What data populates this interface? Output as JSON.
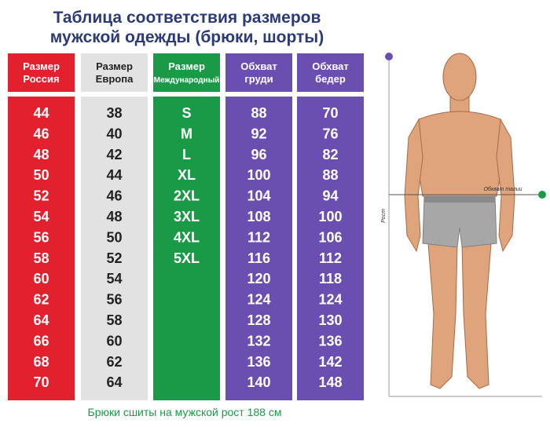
{
  "title": [
    "Таблица соответствия размеров",
    "мужской одежды (брюки, шорты)"
  ],
  "columns": [
    {
      "header": [
        "Размер",
        "Россия"
      ],
      "values": [
        44,
        46,
        48,
        50,
        52,
        54,
        56,
        58,
        60,
        62,
        64,
        66,
        68,
        70
      ]
    },
    {
      "header": [
        "Размер",
        "Европа"
      ],
      "values": [
        38,
        40,
        42,
        44,
        46,
        48,
        50,
        52,
        54,
        56,
        58,
        60,
        62,
        64
      ]
    },
    {
      "header": [
        "Размер",
        "Международный"
      ],
      "values": [
        "S",
        "M",
        "L",
        "XL",
        "2XL",
        "3XL",
        "4XL",
        "5XL"
      ]
    },
    {
      "header": [
        "Обхват",
        "груди"
      ],
      "values": [
        88,
        92,
        96,
        100,
        104,
        108,
        112,
        116,
        120,
        124,
        128,
        132,
        136,
        140
      ]
    },
    {
      "header": [
        "Обхват",
        "бедер"
      ],
      "values": [
        70,
        76,
        82,
        88,
        94,
        100,
        106,
        112,
        118,
        124,
        130,
        136,
        142,
        148
      ]
    }
  ],
  "footer": "Брюки сшиты на мужской рост 188 см",
  "figure": {
    "waist_label": "Обхват талии",
    "height_label": "Рост"
  }
}
